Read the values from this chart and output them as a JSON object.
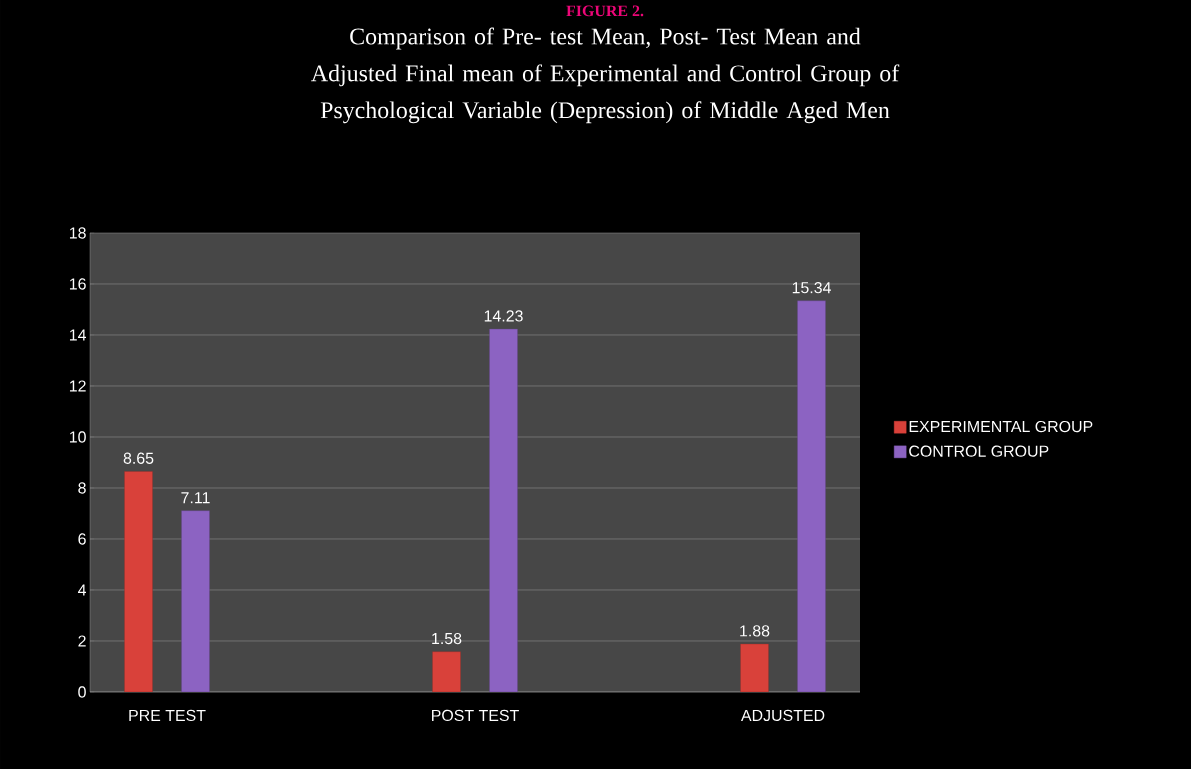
{
  "chart_data": {
    "type": "bar",
    "title": "Comparison of Pre- test Mean, Post- Test Mean and Adjusted Final mean of Experimental and Control Group of Psychological Variable (Depression) of Middle Aged  Men",
    "annotations": [
      "FIGURE 2."
    ],
    "categories": [
      "PRE TEST",
      "POST TEST",
      "ADJUSTED"
    ],
    "series": [
      {
        "name": "EXPERIMENTAL GROUP",
        "color": "#d9413a",
        "values": [
          8.65,
          1.58,
          1.88
        ]
      },
      {
        "name": "CONTROL GROUP",
        "color": "#8c63c2",
        "values": [
          7.11,
          14.23,
          15.34
        ]
      }
    ],
    "ylim": [
      0,
      18
    ],
    "yticks": [
      0,
      2,
      4,
      6,
      8,
      10,
      12,
      14,
      16,
      18
    ],
    "grid": "y",
    "legend": "right",
    "data_labels": true
  }
}
